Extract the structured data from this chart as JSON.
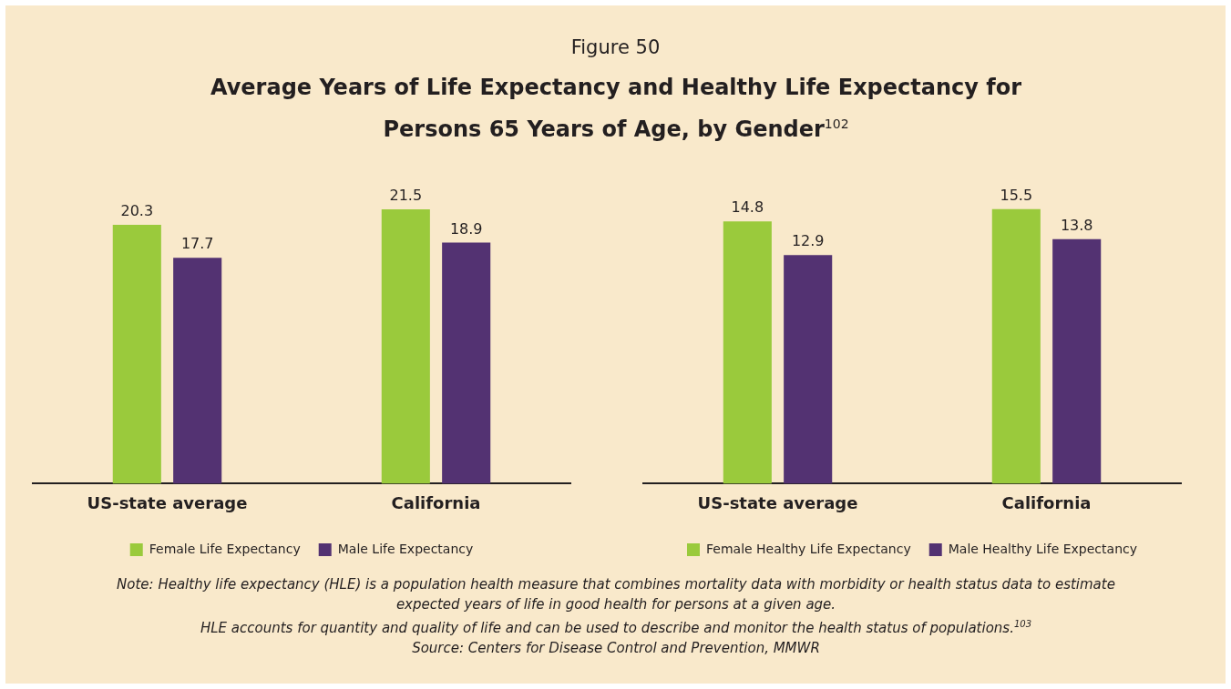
{
  "chart_data": [
    {
      "type": "bar",
      "title": "Average Years of Life Expectancy and Healthy Life Expectancy for Persons 65 Years of Age, by Gender$^{102}$",
      "subtitle": "Figure 50",
      "categories": [
        "US-state average",
        "California"
      ],
      "series": [
        {
          "name": "Female Life Expectancy",
          "color": "#9aca3c",
          "values": [
            20.3,
            21.5
          ]
        },
        {
          "name": "Male Life Expectancy",
          "color": "#533272",
          "values": [
            17.7,
            18.9
          ]
        }
      ],
      "data_labels": true,
      "legend": "bottom",
      "annotations": [
        "Note: Healthy life expectancy (HLE) is a population health measure that combines mortality data with morbidity or health status data to estimate expected years of life in good health for persons at a given age.",
        "HLE accounts for quantity and quality of life and can be used to describe and monitor the health status of populations.$^{103}$",
        "Source: Centers for Disease Control and Prevention, MMWR"
      ]
    },
    {
      "type": "bar",
      "categories": [
        "US-state average",
        "California"
      ],
      "series": [
        {
          "name": "Female Healthy Life Expectancy",
          "color": "#9aca3c",
          "values": [
            14.8,
            15.5
          ]
        },
        {
          "name": "Male Healthy Life Expectancy",
          "color": "#533272",
          "values": [
            12.9,
            13.8
          ]
        }
      ],
      "data_labels": true,
      "legend": "bottom"
    }
  ]
}
